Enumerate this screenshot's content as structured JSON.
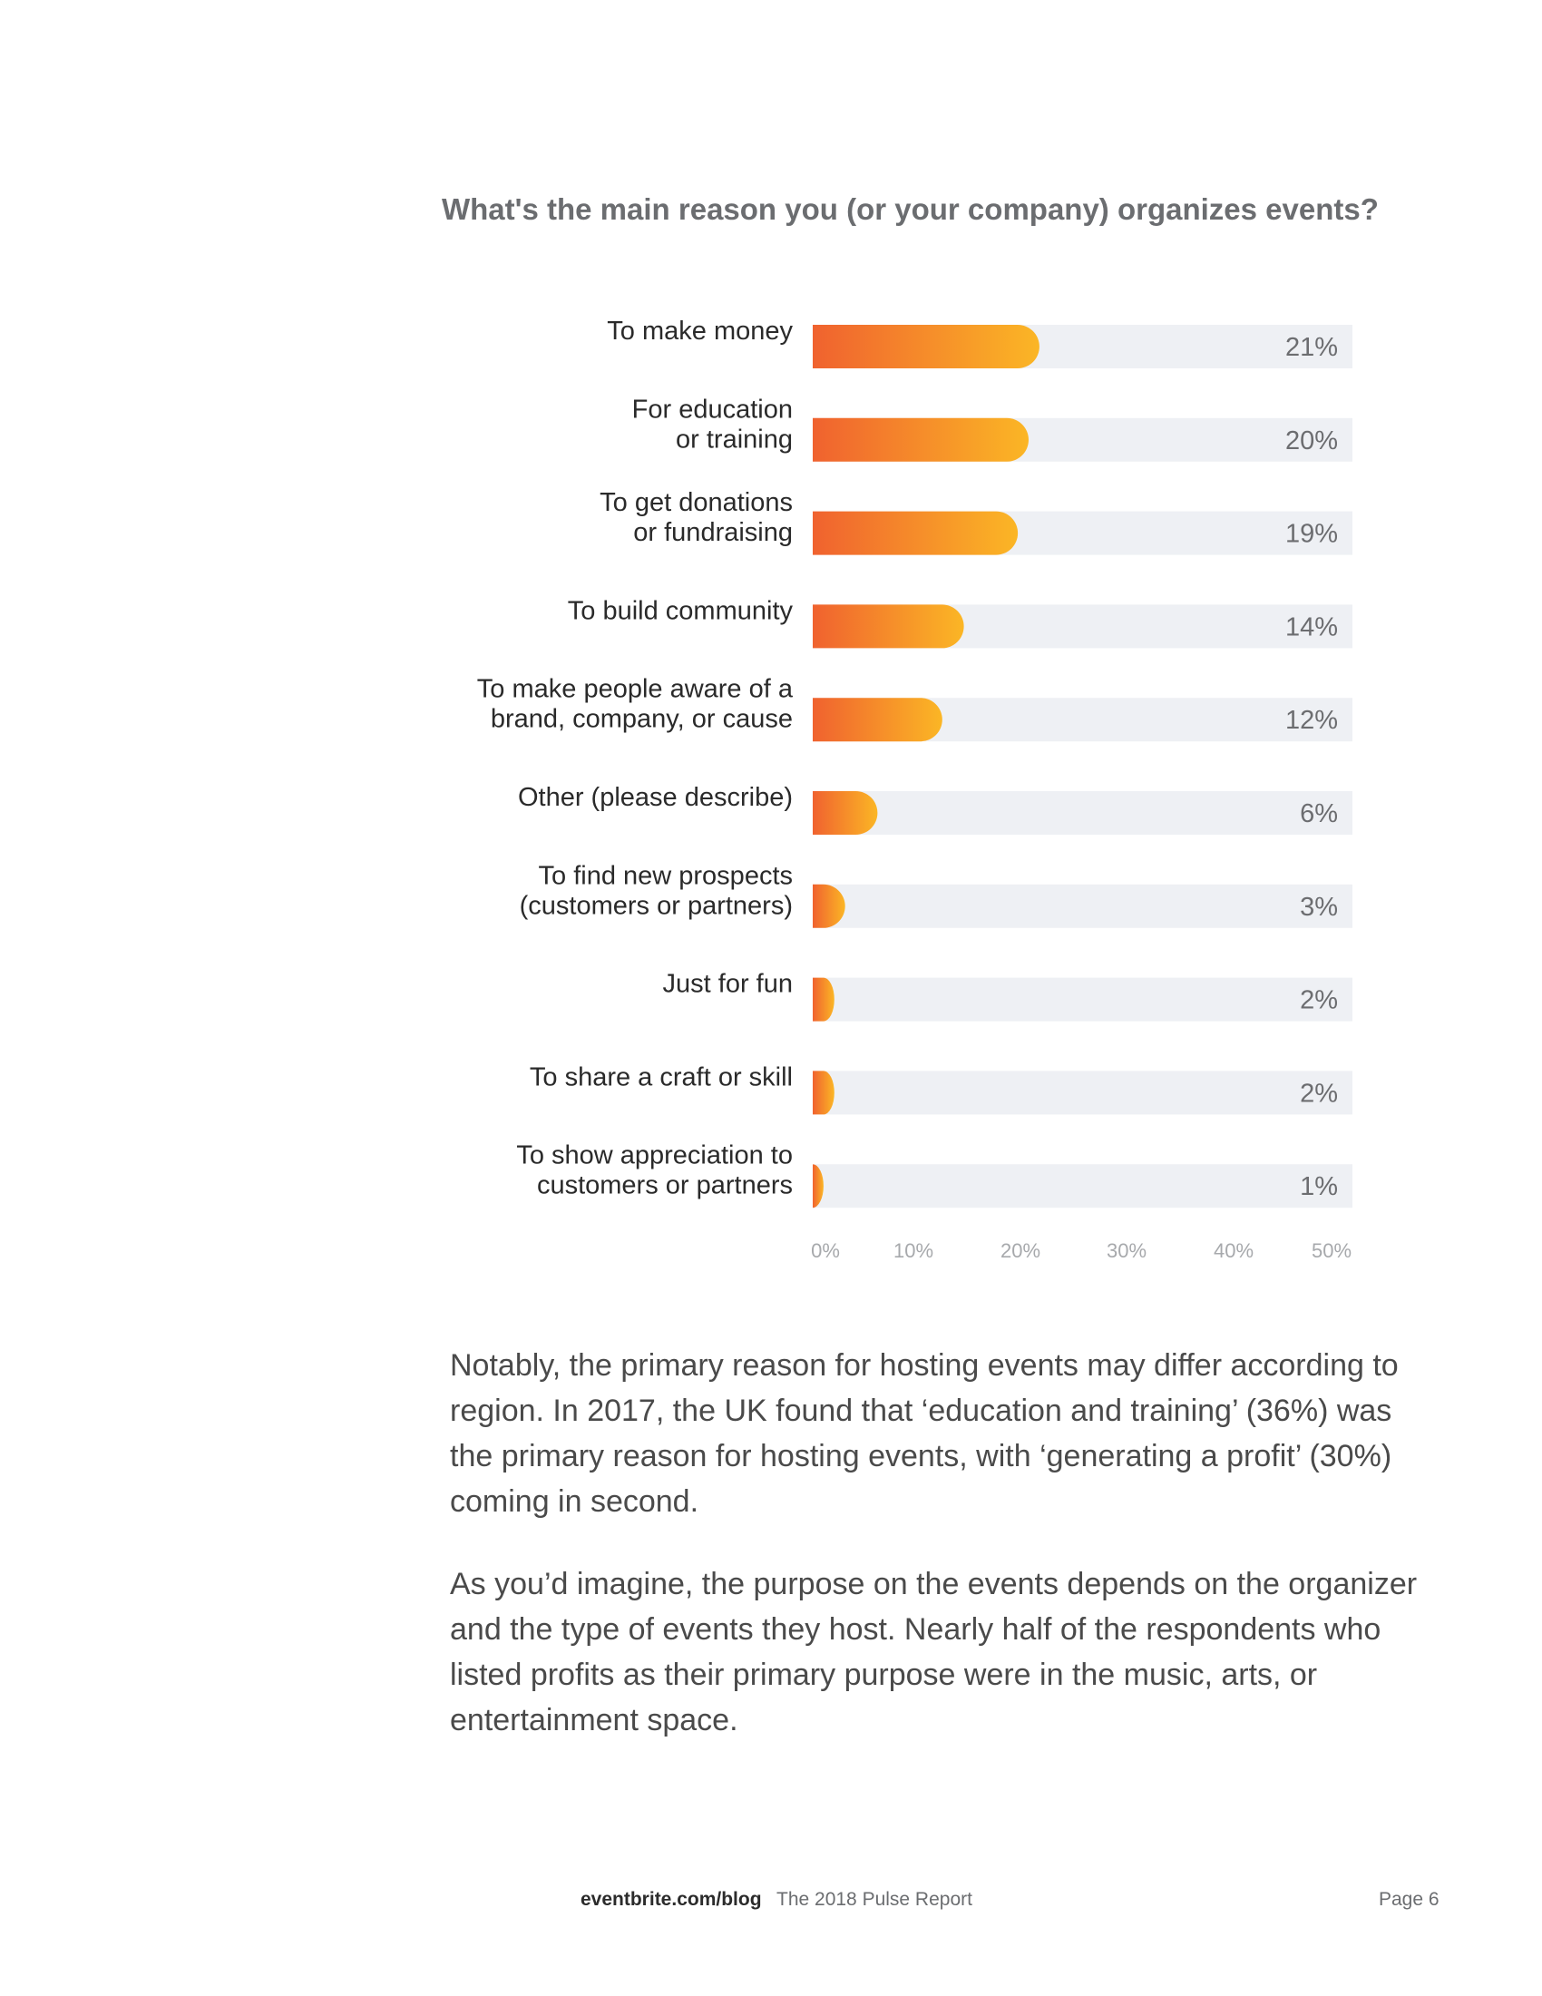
{
  "chart_data": {
    "type": "bar",
    "orientation": "horizontal",
    "title": "What's the main reason you (or your company) organizes events?",
    "categories": [
      [
        "To make money"
      ],
      [
        "For education",
        "or training"
      ],
      [
        "To get donations",
        "or  fundraising"
      ],
      [
        "To build community"
      ],
      [
        "To make people aware of a",
        "brand, company, or cause"
      ],
      [
        "Other (please describe)"
      ],
      [
        "To find new prospects",
        "(customers or partners)"
      ],
      [
        "Just for fun"
      ],
      [
        "To share a craft or skill"
      ],
      [
        "To show appreciation to",
        "customers or partners"
      ]
    ],
    "values": [
      21,
      20,
      19,
      14,
      12,
      6,
      3,
      2,
      2,
      1
    ],
    "value_labels": [
      "21%",
      "20%",
      "19%",
      "14%",
      "12%",
      "6%",
      "3%",
      "2%",
      "2%",
      "1%"
    ],
    "xlim": [
      0,
      50
    ],
    "x_ticks": [
      "0%",
      "10%",
      "20%",
      "30%",
      "40%",
      "50%"
    ],
    "grid": false,
    "colors": {
      "bar_gradient_start": "#f0622f",
      "bar_gradient_end": "#fbb625",
      "track": "#eef0f4"
    }
  },
  "body": {
    "paragraph1": "Notably, the primary reason for hosting events may differ according to region. In 2017, the UK found that  ‘education and training’ (36%) was the primary reason for hosting events, with ‘generating a profit’ (30%) coming in second.",
    "paragraph2": "As you’d imagine, the purpose on the events depends on the organizer and the type of events they host. Nearly half of the respondents who listed profits as their primary purpose were in the music, arts, or entertainment space."
  },
  "footer": {
    "site": "eventbrite.com/blog",
    "report": "The 2018 Pulse Report",
    "page": "Page  6"
  }
}
